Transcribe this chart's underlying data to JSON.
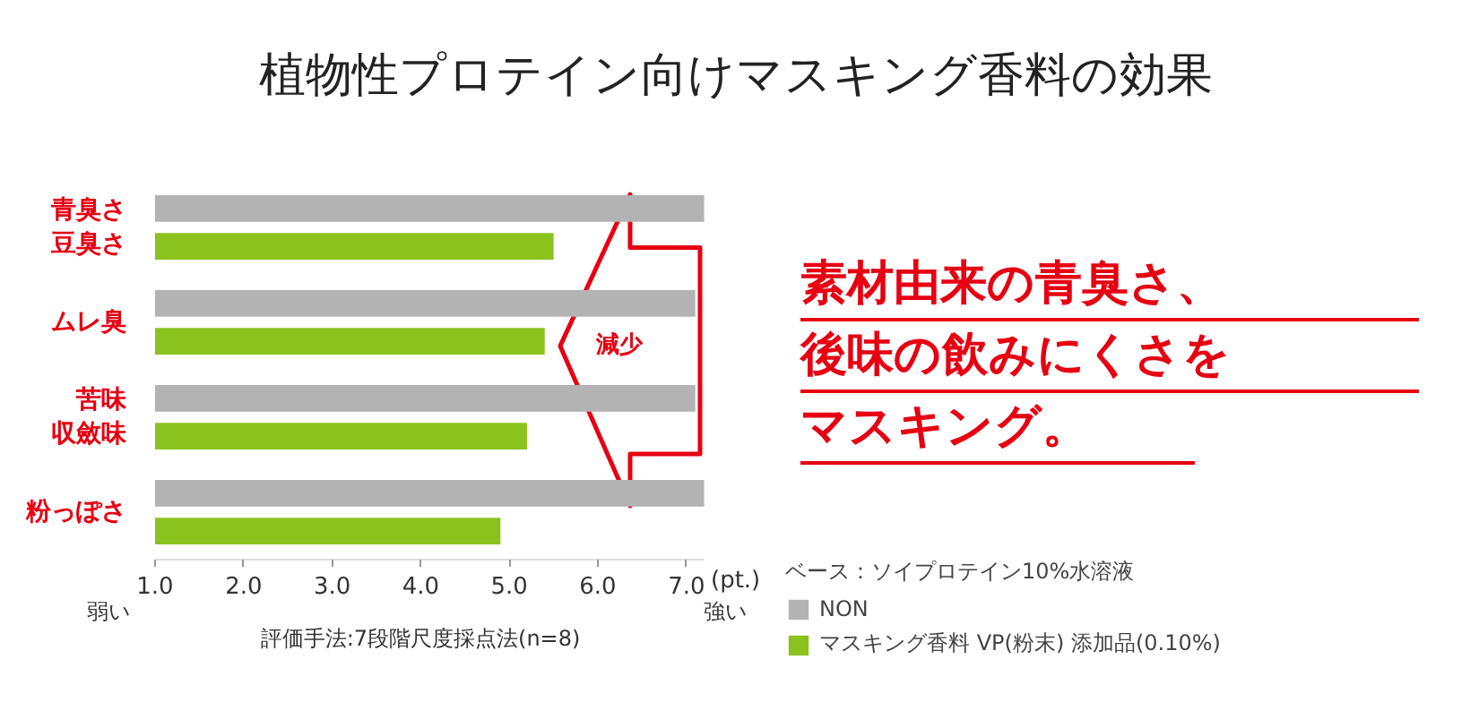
{
  "chart_data": {
    "type": "bar",
    "orientation": "horizontal",
    "title": "植物性プロテイン向けマスキング香料の効果",
    "xlabel": "(pt.)",
    "categories": [
      "青臭さ豆臭さ",
      "ムレ臭",
      "苦味収斂味",
      "粉っぽさ"
    ],
    "series": [
      {
        "name": "NON",
        "color": "#b3b3b3",
        "values": [
          7.2,
          7.1,
          7.1,
          7.2
        ]
      },
      {
        "name": "マスキング香料 VP(粉末) 添加品(0.10%)",
        "color": "#8cc21e",
        "values": [
          5.5,
          5.4,
          5.2,
          4.9
        ]
      }
    ],
    "xlim": [
      1.0,
      7.2
    ],
    "xticks": [
      {
        "value": 1,
        "label": "1.0"
      },
      {
        "value": 2,
        "label": "2.0"
      },
      {
        "value": 3,
        "label": "3.0"
      },
      {
        "value": 4,
        "label": "4.0"
      },
      {
        "value": 5,
        "label": "5.0"
      },
      {
        "value": 6,
        "label": "6.0"
      },
      {
        "value": 7,
        "label": "7.0"
      }
    ],
    "grid": false,
    "legend": "bottom right",
    "legend_title": "ベース：ソイプロテイン10%水溶液",
    "annotations": [
      "減少",
      "素材由来の青臭さ、後味の飲みにくさをマスキング。",
      "弱い",
      "強い",
      "評価手法:7段階尺度採点法(n=8)"
    ]
  }
}
